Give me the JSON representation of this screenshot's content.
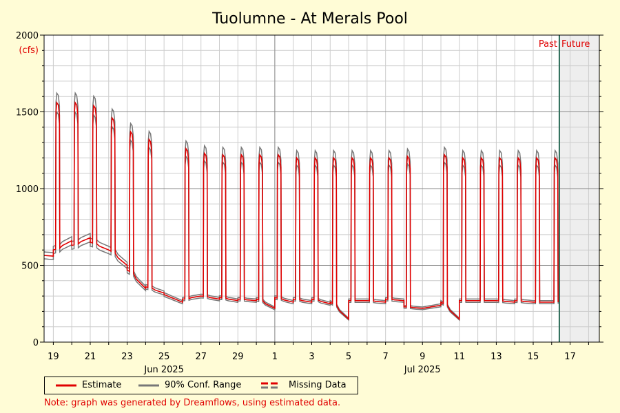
{
  "colors": {
    "background": "#fffcd6",
    "plot_background": "#ffffff",
    "future_background": "#eeeeee",
    "estimate": "#e00000",
    "confidence": "#777777",
    "now_line": "#2e6e5a",
    "grid_minor": "#cccccc",
    "grid_major": "#888888",
    "accent_text": "#e00000"
  },
  "chart_data": {
    "type": "line",
    "title": "Tuolumne - At Merals Pool",
    "ylabel": "",
    "unit_label": "(cfs)",
    "ylim": [
      0,
      2000
    ],
    "yticks": [
      0,
      500,
      1000,
      1500,
      2000
    ],
    "xlim": [
      "2025-06-18T12:00",
      "2025-07-18T14:00"
    ],
    "x_tick_labels": [
      {
        "date": "2025-06-19",
        "label": "19"
      },
      {
        "date": "2025-06-21",
        "label": "21"
      },
      {
        "date": "2025-06-23",
        "label": "23"
      },
      {
        "date": "2025-06-25",
        "label": "25"
      },
      {
        "date": "2025-06-27",
        "label": "27"
      },
      {
        "date": "2025-06-29",
        "label": "29"
      },
      {
        "date": "2025-07-01",
        "label": "1"
      },
      {
        "date": "2025-07-03",
        "label": "3"
      },
      {
        "date": "2025-07-05",
        "label": "5"
      },
      {
        "date": "2025-07-07",
        "label": "7"
      },
      {
        "date": "2025-07-09",
        "label": "9"
      },
      {
        "date": "2025-07-11",
        "label": "11"
      },
      {
        "date": "2025-07-13",
        "label": "13"
      },
      {
        "date": "2025-07-15",
        "label": "15"
      },
      {
        "date": "2025-07-17",
        "label": "17"
      }
    ],
    "month_labels": [
      {
        "date": "2025-06-25",
        "label": "Jun 2025"
      },
      {
        "date": "2025-07-09",
        "label": "Jul 2025"
      }
    ],
    "month_boundary": "2025-07-01",
    "now": "2025-07-16T10:00",
    "past_label": "Past",
    "future_label": "Future",
    "grid": true,
    "confidence_band_pct": 4,
    "series": [
      {
        "name": "Estimate",
        "role": "estimate",
        "days": [
          {
            "date": "2025-06-18",
            "base_start": 570,
            "base_end": 560,
            "peak": null
          },
          {
            "date": "2025-06-19",
            "base_start": 600,
            "base_end": 660,
            "peak": 1560
          },
          {
            "date": "2025-06-20",
            "base_start": 630,
            "base_end": 680,
            "peak": 1560
          },
          {
            "date": "2025-06-21",
            "base_start": 650,
            "base_end": 600,
            "peak": 1540
          },
          {
            "date": "2025-06-22",
            "base_start": 600,
            "base_end": 500,
            "peak": 1460
          },
          {
            "date": "2025-06-23",
            "base_start": 470,
            "base_end": 350,
            "peak": 1370
          },
          {
            "date": "2025-06-24",
            "base_start": 360,
            "base_end": 320,
            "peak": 1320
          },
          {
            "date": "2025-06-25",
            "base_start": 310,
            "base_end": 260,
            "peak": null
          },
          {
            "date": "2025-06-26",
            "base_start": 280,
            "base_end": 300,
            "peak": 1260
          },
          {
            "date": "2025-06-27",
            "base_start": 300,
            "base_end": 280,
            "peak": 1230
          },
          {
            "date": "2025-06-28",
            "base_start": 290,
            "base_end": 270,
            "peak": 1220
          },
          {
            "date": "2025-06-29",
            "base_start": 280,
            "base_end": 270,
            "peak": 1220
          },
          {
            "date": "2025-06-30",
            "base_start": 280,
            "base_end": 220,
            "peak": 1220
          },
          {
            "date": "2025-07-01",
            "base_start": 290,
            "base_end": 260,
            "peak": 1220
          },
          {
            "date": "2025-07-02",
            "base_start": 280,
            "base_end": 260,
            "peak": 1200
          },
          {
            "date": "2025-07-03",
            "base_start": 280,
            "base_end": 250,
            "peak": 1200
          },
          {
            "date": "2025-07-04",
            "base_start": 260,
            "base_end": 150,
            "peak": 1200
          },
          {
            "date": "2025-07-05",
            "base_start": 270,
            "base_end": 270,
            "peak": 1200
          },
          {
            "date": "2025-07-06",
            "base_start": 270,
            "base_end": 260,
            "peak": 1200
          },
          {
            "date": "2025-07-07",
            "base_start": 280,
            "base_end": 270,
            "peak": 1200
          },
          {
            "date": "2025-07-08",
            "base_start": 230,
            "base_end": 220,
            "peak": 1210
          },
          {
            "date": "2025-07-09",
            "base_start": 220,
            "base_end": 240,
            "peak": null
          },
          {
            "date": "2025-07-10",
            "base_start": 260,
            "base_end": 150,
            "peak": 1220
          },
          {
            "date": "2025-07-11",
            "base_start": 270,
            "base_end": 270,
            "peak": 1200
          },
          {
            "date": "2025-07-12",
            "base_start": 270,
            "base_end": 270,
            "peak": 1200
          },
          {
            "date": "2025-07-13",
            "base_start": 270,
            "base_end": 260,
            "peak": 1200
          },
          {
            "date": "2025-07-14",
            "base_start": 270,
            "base_end": 260,
            "peak": 1200
          },
          {
            "date": "2025-07-15",
            "base_start": 260,
            "base_end": 260,
            "peak": 1200
          },
          {
            "date": "2025-07-16",
            "base_start": 260,
            "base_end": 260,
            "peak": 1200
          }
        ]
      }
    ]
  },
  "legend": {
    "estimate_label": "Estimate",
    "conf_label": "90% Conf. Range",
    "missing_label": "Missing Data"
  },
  "note": "Note: graph was generated by Dreamflows, using estimated data."
}
